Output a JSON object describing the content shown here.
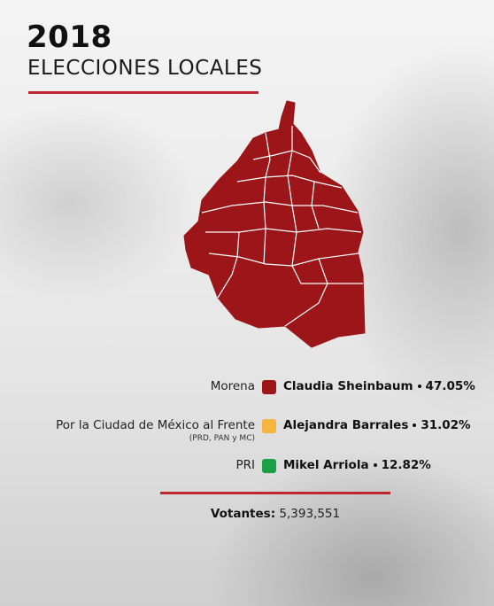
{
  "header": {
    "year": "2018",
    "subtitle": "ELECCIONES LOCALES"
  },
  "results": [
    {
      "party": "Morena",
      "candidate": "Claudia Sheinbaum",
      "percent": "47.05%",
      "color": "#9b1519"
    },
    {
      "party": "Por la Ciudad de México al Frente",
      "party_note": "(PRD, PAN y MC)",
      "candidate": "Alejandra Barrales",
      "percent": "31.02%",
      "color": "#f6b53c"
    },
    {
      "party": "PRI",
      "candidate": "Mikel Arriola",
      "percent": "12.82%",
      "color": "#1aa047"
    }
  ],
  "voters": {
    "label": "Votantes:",
    "value": "5,393,551"
  }
}
